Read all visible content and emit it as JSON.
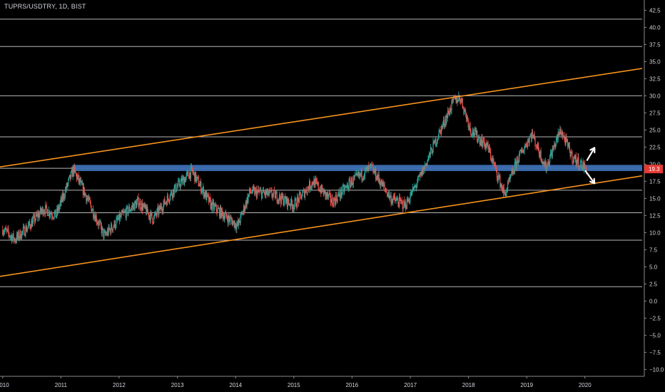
{
  "header": {
    "symbol_title": "TUPRS/USDTRY, 1D, BIST"
  },
  "colors": {
    "background": "#000000",
    "grid": "#d9d9d9",
    "axis_text": "#d1d4dc",
    "axis_line": "#8a8a8a",
    "trendline": "#f7931e",
    "support_band": "#3d6fb3",
    "price_label_bg": "#e53935",
    "candle_up": "#26a69a",
    "candle_down": "#ef5350",
    "arrow": "#ffffff"
  },
  "chart_data": {
    "type": "candlestick",
    "x_axis": {
      "range": [
        "2009-12-15",
        "2020-12-25"
      ],
      "tick_labels": [
        {
          "label": "2010",
          "date": "2010-01-01"
        },
        {
          "label": "2011",
          "date": "2011-01-01"
        },
        {
          "label": "2012",
          "date": "2012-01-01"
        },
        {
          "label": "2013",
          "date": "2013-01-01"
        },
        {
          "label": "2014",
          "date": "2014-01-01"
        },
        {
          "label": "2015",
          "date": "2015-01-01"
        },
        {
          "label": "2016",
          "date": "2016-01-01"
        },
        {
          "label": "2017",
          "date": "2017-01-01"
        },
        {
          "label": "2018",
          "date": "2018-01-01"
        },
        {
          "label": "2019",
          "date": "2019-01-01"
        },
        {
          "label": "2020",
          "date": "2020-01-01"
        }
      ]
    },
    "y_axis": {
      "range": [
        -11,
        44
      ],
      "tick_labels": [
        "42.5",
        "40.0",
        "37.5",
        "35.0",
        "32.5",
        "30.0",
        "27.5",
        "25.0",
        "22.5",
        "20.0",
        "17.5",
        "15.0",
        "12.5",
        "10.0",
        "7.5",
        "5.0",
        "2.5",
        "0.0",
        "−2.5",
        "−5.0",
        "−7.5",
        "−10.0"
      ],
      "tick_values": [
        42.5,
        40,
        37.5,
        35,
        32.5,
        30,
        27.5,
        25,
        22.5,
        20,
        17.5,
        15,
        12.5,
        10,
        7.5,
        5,
        2.5,
        0,
        -2.5,
        -5,
        -7.5,
        -10
      ]
    },
    "last_price_label": "19.3",
    "last_price": 19.3,
    "horizontal_levels": [
      41.2,
      37.2,
      30.0,
      24.0,
      19.4,
      16.2,
      12.9,
      8.9,
      2.1
    ],
    "support_zone": {
      "from": "2011-03-15",
      "to": "2020-12-25",
      "y_low": 19.0,
      "y_high": 19.9
    },
    "trendlines": [
      {
        "points": [
          {
            "x": "2009-12-15",
            "y": 19.6
          },
          {
            "x": "2020-12-25",
            "y": 34.0
          }
        ]
      },
      {
        "points": [
          {
            "x": "2009-12-15",
            "y": 3.6
          },
          {
            "x": "2020-12-25",
            "y": 18.3
          }
        ]
      }
    ],
    "arrows": [
      {
        "direction": "up",
        "from": {
          "x": "2020-01-15",
          "y": 20.6
        },
        "to": {
          "x": "2020-03-01",
          "y": 22.4
        }
      },
      {
        "direction": "down",
        "from": {
          "x": "2020-01-05",
          "y": 19.0
        },
        "to": {
          "x": "2020-03-01",
          "y": 17.2
        }
      }
    ],
    "price_path": [
      {
        "x": "2010-01-01",
        "y": 10.5
      },
      {
        "x": "2010-03-20",
        "y": 9.0
      },
      {
        "x": "2010-06-15",
        "y": 11.0
      },
      {
        "x": "2010-09-15",
        "y": 13.5
      },
      {
        "x": "2010-12-01",
        "y": 12.5
      },
      {
        "x": "2011-03-20",
        "y": 19.2
      },
      {
        "x": "2011-06-15",
        "y": 15.0
      },
      {
        "x": "2011-10-01",
        "y": 9.5
      },
      {
        "x": "2012-01-20",
        "y": 12.5
      },
      {
        "x": "2012-05-01",
        "y": 14.5
      },
      {
        "x": "2012-08-01",
        "y": 12.0
      },
      {
        "x": "2012-12-01",
        "y": 16.0
      },
      {
        "x": "2013-04-01",
        "y": 19.0
      },
      {
        "x": "2013-08-01",
        "y": 14.0
      },
      {
        "x": "2014-01-15",
        "y": 11.0
      },
      {
        "x": "2014-04-01",
        "y": 16.0
      },
      {
        "x": "2014-09-01",
        "y": 15.5
      },
      {
        "x": "2015-01-01",
        "y": 14.0
      },
      {
        "x": "2015-05-01",
        "y": 17.5
      },
      {
        "x": "2015-09-01",
        "y": 14.5
      },
      {
        "x": "2016-01-01",
        "y": 17.5
      },
      {
        "x": "2016-05-01",
        "y": 19.5
      },
      {
        "x": "2016-09-01",
        "y": 15.0
      },
      {
        "x": "2016-12-01",
        "y": 14.0
      },
      {
        "x": "2017-03-01",
        "y": 18.0
      },
      {
        "x": "2017-06-01",
        "y": 23.0
      },
      {
        "x": "2017-10-01",
        "y": 29.3
      },
      {
        "x": "2017-11-10",
        "y": 29.8
      },
      {
        "x": "2018-01-15",
        "y": 25.0
      },
      {
        "x": "2018-05-01",
        "y": 22.5
      },
      {
        "x": "2018-08-15",
        "y": 15.5
      },
      {
        "x": "2018-11-01",
        "y": 20.5
      },
      {
        "x": "2019-02-01",
        "y": 24.5
      },
      {
        "x": "2019-05-01",
        "y": 19.5
      },
      {
        "x": "2019-08-01",
        "y": 25.0
      },
      {
        "x": "2019-10-15",
        "y": 21.0
      },
      {
        "x": "2020-01-10",
        "y": 19.3
      }
    ]
  }
}
